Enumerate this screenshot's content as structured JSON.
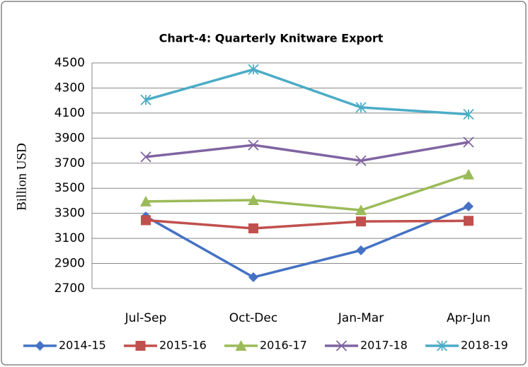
{
  "chart_data": {
    "type": "line",
    "title": "Chart-4: Quarterly Knitware Export",
    "y_label": "Billion USD",
    "categories": [
      "Jul-Sep",
      "Oct-Dec",
      "Jan-Mar",
      "Apr-Jun"
    ],
    "series": [
      {
        "name": "2014-15",
        "color": "#4472c4",
        "marker": "diamond",
        "values": [
          3275,
          2790,
          3005,
          3355
        ]
      },
      {
        "name": "2015-16",
        "color": "#c0504d",
        "marker": "square",
        "values": [
          3245,
          3180,
          3235,
          3240
        ]
      },
      {
        "name": "2016-17",
        "color": "#9bbb59",
        "marker": "triangle",
        "values": [
          3395,
          3405,
          3325,
          3610
        ]
      },
      {
        "name": "2017-18",
        "color": "#8064a2",
        "marker": "x",
        "values": [
          3750,
          3845,
          3720,
          3868
        ]
      },
      {
        "name": "2018-19",
        "color": "#4bacc6",
        "marker": "star",
        "values": [
          4205,
          4448,
          4145,
          4090
        ]
      }
    ],
    "ylim": [
      2700,
      4500
    ],
    "yticks": [
      2700,
      2900,
      3100,
      3300,
      3500,
      3700,
      3900,
      4100,
      4300,
      4500
    ],
    "grid": true,
    "legend": "bottom"
  }
}
